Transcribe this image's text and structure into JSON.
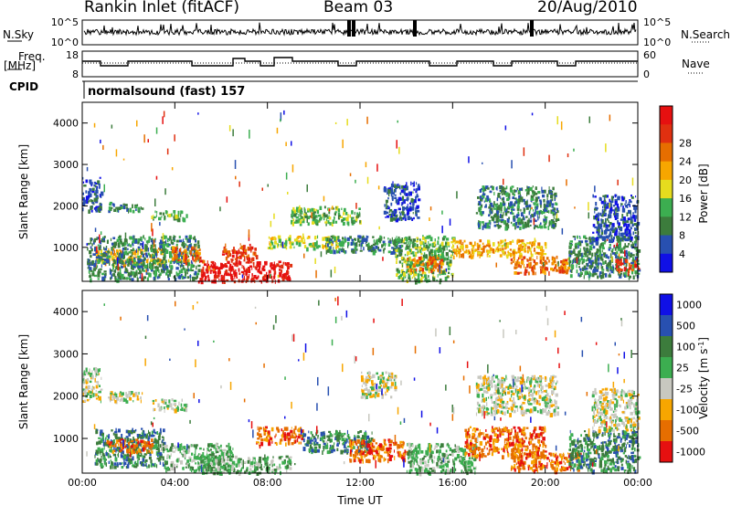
{
  "header": {
    "title": "Rankin Inlet (fitACF)",
    "beam": "Beam 03",
    "date": "20/Aug/2010"
  },
  "panels": {
    "nsky": {
      "left_label": "N.Sky",
      "ticks": [
        "10^5",
        "10^0"
      ],
      "right_label": "N.Search",
      "right_ticks": [
        "10^5",
        "10^0"
      ]
    },
    "freq": {
      "left_label_top": "Freq.",
      "left_label_bottom": "[MHz]",
      "ticks": [
        "18",
        "8"
      ],
      "right_label": "Nave",
      "right_ticks": [
        "60",
        "0"
      ]
    },
    "cpid": {
      "label": "CPID",
      "program": "normalsound (fast) 157"
    }
  },
  "colors": {
    "power": [
      "#1010e6",
      "#2850b0",
      "#3c7c3c",
      "#3cae50",
      "#e6dc1e",
      "#f7a600",
      "#e66e00",
      "#e03010",
      "#e61010"
    ],
    "velocity": [
      "#1010e6",
      "#2850b0",
      "#3c7c3c",
      "#3cae50",
      "#c8c8c0",
      "#f7a600",
      "#e66e00",
      "#e61010"
    ]
  },
  "chart_data": [
    {
      "type": "heatmap",
      "name": "power",
      "xlabel": "",
      "ylabel": "Slant Range [km]",
      "y_ticks": [
        "1000",
        "2000",
        "3000",
        "4000"
      ],
      "colorbar_label": "Power [dB]",
      "colorbar_ticks": [
        "4",
        "8",
        "12",
        "16",
        "20",
        "24",
        "28"
      ],
      "x_range_hours": [
        0,
        24
      ],
      "y_range_km": [
        180,
        4500
      ],
      "regions": [
        {
          "x0": 0.0,
          "x1": 0.8,
          "y0": 1900,
          "y1": 2700,
          "level": 1
        },
        {
          "x0": 1.1,
          "x1": 2.6,
          "y0": 1900,
          "y1": 2100,
          "level": 2
        },
        {
          "x0": 3.0,
          "x1": 4.5,
          "y0": 1700,
          "y1": 1900,
          "level": 3
        },
        {
          "x0": 0.5,
          "x1": 3.5,
          "y0": 600,
          "y1": 1000,
          "level": 5
        },
        {
          "x0": 0.2,
          "x1": 5.0,
          "y0": 250,
          "y1": 1300,
          "level": 2
        },
        {
          "x0": 3.8,
          "x1": 5.2,
          "y0": 650,
          "y1": 1050,
          "level": 6
        },
        {
          "x0": 5.0,
          "x1": 9.0,
          "y0": 200,
          "y1": 700,
          "level": 8
        },
        {
          "x0": 6.0,
          "x1": 7.5,
          "y0": 700,
          "y1": 1100,
          "level": 7
        },
        {
          "x0": 8.0,
          "x1": 11.0,
          "y0": 1000,
          "y1": 1300,
          "level": 4
        },
        {
          "x0": 9.0,
          "x1": 12.0,
          "y0": 1600,
          "y1": 2000,
          "level": 3
        },
        {
          "x0": 10.5,
          "x1": 13.8,
          "y0": 900,
          "y1": 1300,
          "level": 2
        },
        {
          "x0": 13.0,
          "x1": 14.5,
          "y0": 1700,
          "y1": 2600,
          "level": 1
        },
        {
          "x0": 13.5,
          "x1": 16.0,
          "y0": 200,
          "y1": 1300,
          "level": 3
        },
        {
          "x0": 14.0,
          "x1": 15.5,
          "y0": 450,
          "y1": 800,
          "level": 6
        },
        {
          "x0": 16.0,
          "x1": 20.0,
          "y0": 800,
          "y1": 1200,
          "level": 5
        },
        {
          "x0": 17.0,
          "x1": 20.5,
          "y0": 1500,
          "y1": 2500,
          "level": 2
        },
        {
          "x0": 18.5,
          "x1": 21.0,
          "y0": 400,
          "y1": 800,
          "level": 6
        },
        {
          "x0": 21.0,
          "x1": 24.0,
          "y0": 300,
          "y1": 1300,
          "level": 2
        },
        {
          "x0": 22.0,
          "x1": 24.0,
          "y0": 1200,
          "y1": 2300,
          "level": 1
        },
        {
          "x0": 23.0,
          "x1": 24.0,
          "y0": 450,
          "y1": 750,
          "level": 7
        }
      ]
    },
    {
      "type": "heatmap",
      "name": "velocity",
      "xlabel": "Time UT",
      "ylabel": "Slant Range [km]",
      "x_ticks": [
        "00:00",
        "04:00",
        "08:00",
        "12:00",
        "16:00",
        "20:00",
        "00:00"
      ],
      "y_ticks": [
        "1000",
        "2000",
        "3000",
        "4000"
      ],
      "colorbar_label": "Velocity [m s^-1]",
      "colorbar_ticks": [
        "1000",
        "500",
        "100",
        "25",
        "-25",
        "-100",
        "-500",
        "-1000"
      ],
      "x_range_hours": [
        0,
        24
      ],
      "y_range_km": [
        180,
        4500
      ],
      "regions": [
        {
          "x0": 0.0,
          "x1": 0.8,
          "y0": 1900,
          "y1": 2700,
          "level": 4
        },
        {
          "x0": 1.1,
          "x1": 2.6,
          "y0": 1900,
          "y1": 2150,
          "level": 4
        },
        {
          "x0": 3.0,
          "x1": 4.5,
          "y0": 1700,
          "y1": 1950,
          "level": 4
        },
        {
          "x0": 0.5,
          "x1": 3.5,
          "y0": 350,
          "y1": 1250,
          "level": 2
        },
        {
          "x0": 1.0,
          "x1": 3.0,
          "y0": 700,
          "y1": 1000,
          "level": 6
        },
        {
          "x0": 3.5,
          "x1": 6.5,
          "y0": 250,
          "y1": 900,
          "level": 3
        },
        {
          "x0": 5.0,
          "x1": 9.0,
          "y0": 200,
          "y1": 600,
          "level": 3
        },
        {
          "x0": 7.5,
          "x1": 9.5,
          "y0": 900,
          "y1": 1300,
          "level": 6
        },
        {
          "x0": 9.5,
          "x1": 12.5,
          "y0": 700,
          "y1": 1200,
          "level": 2
        },
        {
          "x0": 12.0,
          "x1": 13.5,
          "y0": 2000,
          "y1": 2600,
          "level": 4
        },
        {
          "x0": 11.5,
          "x1": 14.0,
          "y0": 500,
          "y1": 1000,
          "level": 6
        },
        {
          "x0": 14.0,
          "x1": 17.0,
          "y0": 200,
          "y1": 900,
          "level": 3
        },
        {
          "x0": 16.5,
          "x1": 20.0,
          "y0": 600,
          "y1": 1300,
          "level": 6
        },
        {
          "x0": 17.0,
          "x1": 20.5,
          "y0": 1600,
          "y1": 2500,
          "level": 4
        },
        {
          "x0": 18.5,
          "x1": 21.5,
          "y0": 250,
          "y1": 700,
          "level": 6
        },
        {
          "x0": 21.0,
          "x1": 24.0,
          "y0": 250,
          "y1": 1200,
          "level": 2
        },
        {
          "x0": 22.0,
          "x1": 24.0,
          "y0": 1200,
          "y1": 2200,
          "level": 4
        }
      ]
    }
  ]
}
